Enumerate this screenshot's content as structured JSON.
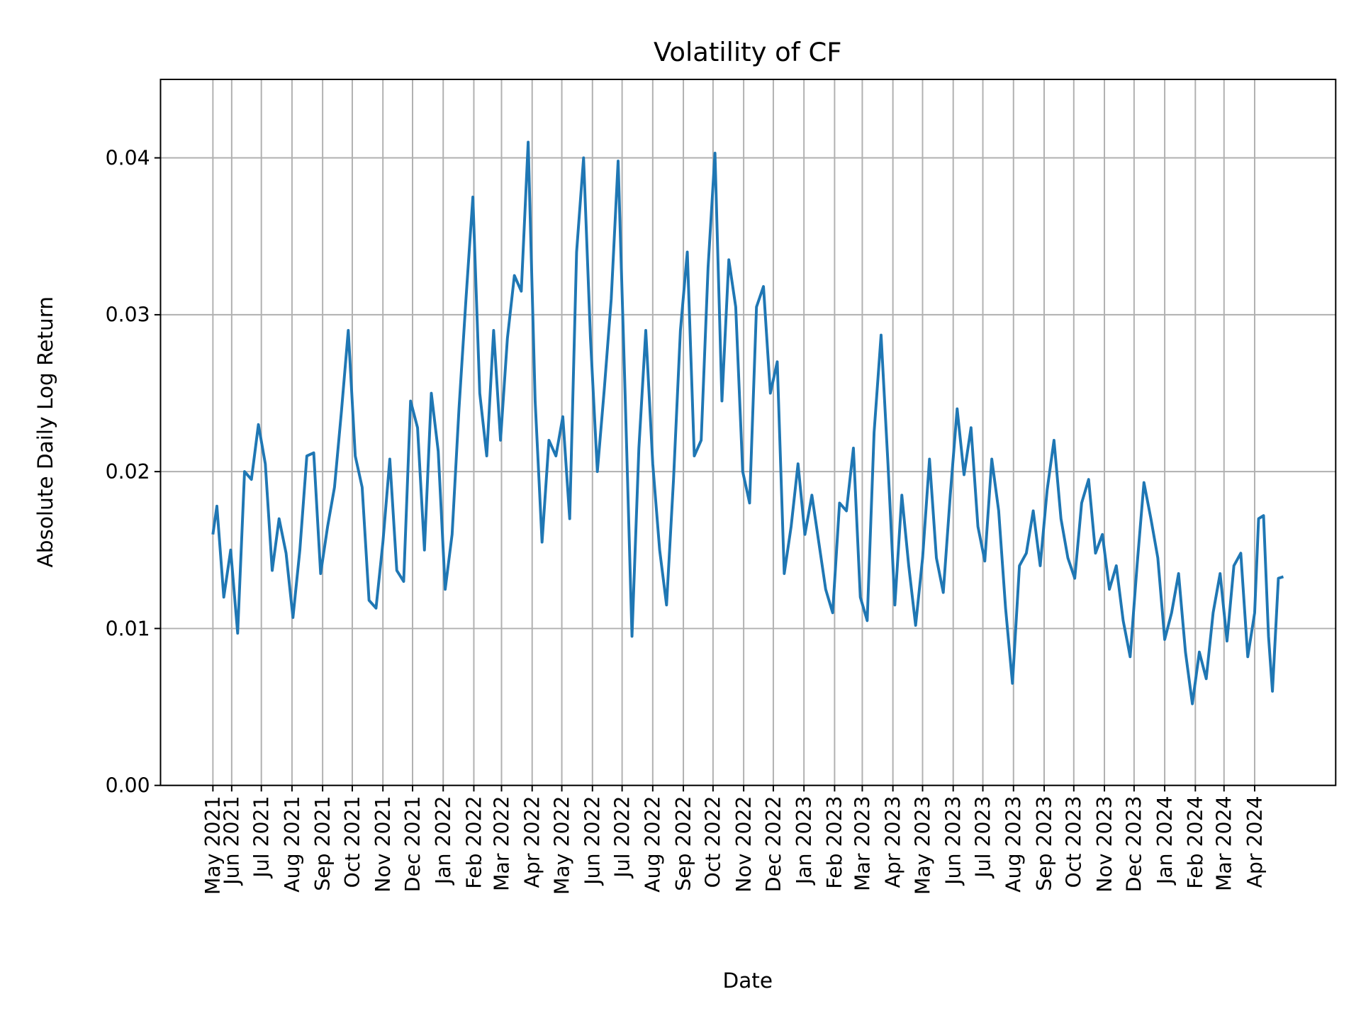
{
  "chart_data": {
    "type": "line",
    "title": "Volatility of CF",
    "xlabel": "Date",
    "ylabel": "Absolute Daily Log Return",
    "xlim": [
      "2021-03-21",
      "2024-06-22"
    ],
    "ylim": [
      0,
      0.045
    ],
    "grid": true,
    "line_color": "#1f77b4",
    "yticks": [
      {
        "value": 0.0,
        "label": "0.00"
      },
      {
        "value": 0.01,
        "label": "0.01"
      },
      {
        "value": 0.02,
        "label": "0.02"
      },
      {
        "value": 0.03,
        "label": "0.03"
      },
      {
        "value": 0.04,
        "label": "0.04"
      }
    ],
    "xticks": [
      {
        "date": "2021-05-13",
        "label": "May 2021"
      },
      {
        "date": "2021-06-01",
        "label": "Jun 2021"
      },
      {
        "date": "2021-07-01",
        "label": "Jul 2021"
      },
      {
        "date": "2021-08-01",
        "label": "Aug 2021"
      },
      {
        "date": "2021-09-01",
        "label": "Sep 2021"
      },
      {
        "date": "2021-10-01",
        "label": "Oct 2021"
      },
      {
        "date": "2021-11-01",
        "label": "Nov 2021"
      },
      {
        "date": "2021-12-01",
        "label": "Dec 2021"
      },
      {
        "date": "2022-01-01",
        "label": "Jan 2022"
      },
      {
        "date": "2022-02-01",
        "label": "Feb 2022"
      },
      {
        "date": "2022-03-01",
        "label": "Mar 2022"
      },
      {
        "date": "2022-04-01",
        "label": "Apr 2022"
      },
      {
        "date": "2022-05-01",
        "label": "May 2022"
      },
      {
        "date": "2022-06-01",
        "label": "Jun 2022"
      },
      {
        "date": "2022-07-01",
        "label": "Jul 2022"
      },
      {
        "date": "2022-08-01",
        "label": "Aug 2022"
      },
      {
        "date": "2022-09-01",
        "label": "Sep 2022"
      },
      {
        "date": "2022-10-01",
        "label": "Oct 2022"
      },
      {
        "date": "2022-11-01",
        "label": "Nov 2022"
      },
      {
        "date": "2022-12-01",
        "label": "Dec 2022"
      },
      {
        "date": "2023-01-01",
        "label": "Jan 2023"
      },
      {
        "date": "2023-02-01",
        "label": "Feb 2023"
      },
      {
        "date": "2023-03-01",
        "label": "Mar 2023"
      },
      {
        "date": "2023-04-01",
        "label": "Apr 2023"
      },
      {
        "date": "2023-05-01",
        "label": "May 2023"
      },
      {
        "date": "2023-06-01",
        "label": "Jun 2023"
      },
      {
        "date": "2023-07-01",
        "label": "Jul 2023"
      },
      {
        "date": "2023-08-01",
        "label": "Aug 2023"
      },
      {
        "date": "2023-09-01",
        "label": "Sep 2023"
      },
      {
        "date": "2023-10-01",
        "label": "Oct 2023"
      },
      {
        "date": "2023-11-01",
        "label": "Nov 2023"
      },
      {
        "date": "2023-12-01",
        "label": "Dec 2023"
      },
      {
        "date": "2024-01-01",
        "label": "Jan 2024"
      },
      {
        "date": "2024-02-01",
        "label": "Feb 2024"
      },
      {
        "date": "2024-03-01",
        "label": "Mar 2024"
      },
      {
        "date": "2024-04-01",
        "label": "Apr 2024"
      }
    ],
    "series": [
      {
        "points": [
          [
            "2021-05-13",
            0.016
          ],
          [
            "2021-05-17",
            0.0178
          ],
          [
            "2021-05-24",
            0.012
          ],
          [
            "2021-05-31",
            0.015
          ],
          [
            "2021-06-07",
            0.0097
          ],
          [
            "2021-06-14",
            0.02
          ],
          [
            "2021-06-21",
            0.0195
          ],
          [
            "2021-06-28",
            0.023
          ],
          [
            "2021-07-05",
            0.0205
          ],
          [
            "2021-07-12",
            0.0137
          ],
          [
            "2021-07-19",
            0.017
          ],
          [
            "2021-07-26",
            0.0148
          ],
          [
            "2021-08-02",
            0.0107
          ],
          [
            "2021-08-09",
            0.015
          ],
          [
            "2021-08-16",
            0.021
          ],
          [
            "2021-08-23",
            0.0212
          ],
          [
            "2021-08-30",
            0.0135
          ],
          [
            "2021-09-06",
            0.0165
          ],
          [
            "2021-09-13",
            0.019
          ],
          [
            "2021-09-20",
            0.0238
          ],
          [
            "2021-09-27",
            0.029
          ],
          [
            "2021-10-04",
            0.021
          ],
          [
            "2021-10-11",
            0.019
          ],
          [
            "2021-10-18",
            0.0118
          ],
          [
            "2021-10-25",
            0.0113
          ],
          [
            "2021-11-01",
            0.0155
          ],
          [
            "2021-11-08",
            0.0208
          ],
          [
            "2021-11-15",
            0.0137
          ],
          [
            "2021-11-22",
            0.013
          ],
          [
            "2021-11-29",
            0.0245
          ],
          [
            "2021-12-06",
            0.0228
          ],
          [
            "2021-12-13",
            0.015
          ],
          [
            "2021-12-20",
            0.025
          ],
          [
            "2021-12-27",
            0.0213
          ],
          [
            "2022-01-03",
            0.0125
          ],
          [
            "2022-01-10",
            0.016
          ],
          [
            "2022-01-17",
            0.024
          ],
          [
            "2022-01-24",
            0.031
          ],
          [
            "2022-01-31",
            0.0375
          ],
          [
            "2022-02-07",
            0.025
          ],
          [
            "2022-02-14",
            0.021
          ],
          [
            "2022-02-21",
            0.029
          ],
          [
            "2022-02-28",
            0.022
          ],
          [
            "2022-03-07",
            0.0285
          ],
          [
            "2022-03-14",
            0.0325
          ],
          [
            "2022-03-21",
            0.0315
          ],
          [
            "2022-03-28",
            0.041
          ],
          [
            "2022-04-04",
            0.0245
          ],
          [
            "2022-04-11",
            0.0155
          ],
          [
            "2022-04-18",
            0.022
          ],
          [
            "2022-04-25",
            0.021
          ],
          [
            "2022-05-02",
            0.0235
          ],
          [
            "2022-05-09",
            0.017
          ],
          [
            "2022-05-16",
            0.034
          ],
          [
            "2022-05-23",
            0.04
          ],
          [
            "2022-05-30",
            0.0285
          ],
          [
            "2022-06-06",
            0.02
          ],
          [
            "2022-06-13",
            0.0253
          ],
          [
            "2022-06-20",
            0.031
          ],
          [
            "2022-06-27",
            0.0398
          ],
          [
            "2022-07-04",
            0.025
          ],
          [
            "2022-07-11",
            0.0095
          ],
          [
            "2022-07-18",
            0.0215
          ],
          [
            "2022-07-25",
            0.029
          ],
          [
            "2022-08-01",
            0.0205
          ],
          [
            "2022-08-08",
            0.015
          ],
          [
            "2022-08-15",
            0.0115
          ],
          [
            "2022-08-22",
            0.0195
          ],
          [
            "2022-08-29",
            0.029
          ],
          [
            "2022-09-05",
            0.034
          ],
          [
            "2022-09-12",
            0.021
          ],
          [
            "2022-09-19",
            0.022
          ],
          [
            "2022-09-26",
            0.033
          ],
          [
            "2022-10-03",
            0.0403
          ],
          [
            "2022-10-10",
            0.0245
          ],
          [
            "2022-10-17",
            0.0335
          ],
          [
            "2022-10-24",
            0.0305
          ],
          [
            "2022-10-31",
            0.02
          ],
          [
            "2022-11-07",
            0.018
          ],
          [
            "2022-11-14",
            0.0305
          ],
          [
            "2022-11-21",
            0.0318
          ],
          [
            "2022-11-28",
            0.025
          ],
          [
            "2022-12-05",
            0.027
          ],
          [
            "2022-12-12",
            0.0135
          ],
          [
            "2022-12-19",
            0.0165
          ],
          [
            "2022-12-26",
            0.0205
          ],
          [
            "2023-01-02",
            0.016
          ],
          [
            "2023-01-09",
            0.0185
          ],
          [
            "2023-01-16",
            0.0155
          ],
          [
            "2023-01-23",
            0.0125
          ],
          [
            "2023-01-30",
            0.011
          ],
          [
            "2023-02-06",
            0.018
          ],
          [
            "2023-02-13",
            0.0175
          ],
          [
            "2023-02-20",
            0.0215
          ],
          [
            "2023-02-27",
            0.012
          ],
          [
            "2023-03-06",
            0.0105
          ],
          [
            "2023-03-13",
            0.0225
          ],
          [
            "2023-03-20",
            0.0287
          ],
          [
            "2023-03-27",
            0.0205
          ],
          [
            "2023-04-03",
            0.0115
          ],
          [
            "2023-04-10",
            0.0185
          ],
          [
            "2023-04-17",
            0.014
          ],
          [
            "2023-04-24",
            0.0102
          ],
          [
            "2023-05-01",
            0.0145
          ],
          [
            "2023-05-08",
            0.0208
          ],
          [
            "2023-05-15",
            0.0145
          ],
          [
            "2023-05-22",
            0.0123
          ],
          [
            "2023-05-29",
            0.0185
          ],
          [
            "2023-06-05",
            0.024
          ],
          [
            "2023-06-12",
            0.0198
          ],
          [
            "2023-06-19",
            0.0228
          ],
          [
            "2023-06-26",
            0.0165
          ],
          [
            "2023-07-03",
            0.0143
          ],
          [
            "2023-07-10",
            0.0208
          ],
          [
            "2023-07-17",
            0.0175
          ],
          [
            "2023-07-24",
            0.0113
          ],
          [
            "2023-07-31",
            0.0065
          ],
          [
            "2023-08-07",
            0.014
          ],
          [
            "2023-08-14",
            0.0148
          ],
          [
            "2023-08-21",
            0.0175
          ],
          [
            "2023-08-28",
            0.014
          ],
          [
            "2023-09-04",
            0.0188
          ],
          [
            "2023-09-11",
            0.022
          ],
          [
            "2023-09-18",
            0.017
          ],
          [
            "2023-09-25",
            0.0145
          ],
          [
            "2023-10-02",
            0.0132
          ],
          [
            "2023-10-09",
            0.018
          ],
          [
            "2023-10-16",
            0.0195
          ],
          [
            "2023-10-23",
            0.0148
          ],
          [
            "2023-10-30",
            0.016
          ],
          [
            "2023-11-06",
            0.0125
          ],
          [
            "2023-11-13",
            0.014
          ],
          [
            "2023-11-20",
            0.0105
          ],
          [
            "2023-11-27",
            0.0082
          ],
          [
            "2023-12-04",
            0.014
          ],
          [
            "2023-12-11",
            0.0193
          ],
          [
            "2023-12-18",
            0.017
          ],
          [
            "2023-12-25",
            0.0145
          ],
          [
            "2024-01-01",
            0.0093
          ],
          [
            "2024-01-08",
            0.011
          ],
          [
            "2024-01-15",
            0.0135
          ],
          [
            "2024-01-22",
            0.0085
          ],
          [
            "2024-01-29",
            0.0052
          ],
          [
            "2024-02-05",
            0.0085
          ],
          [
            "2024-02-12",
            0.0068
          ],
          [
            "2024-02-19",
            0.011
          ],
          [
            "2024-02-26",
            0.0135
          ],
          [
            "2024-03-04",
            0.0092
          ],
          [
            "2024-03-11",
            0.014
          ],
          [
            "2024-03-18",
            0.0148
          ],
          [
            "2024-03-25",
            0.0082
          ],
          [
            "2024-04-01",
            0.011
          ],
          [
            "2024-04-05",
            0.017
          ],
          [
            "2024-04-10",
            0.0172
          ],
          [
            "2024-04-15",
            0.0095
          ],
          [
            "2024-04-19",
            0.006
          ],
          [
            "2024-04-25",
            0.0132
          ],
          [
            "2024-04-30",
            0.0133
          ]
        ]
      }
    ]
  }
}
